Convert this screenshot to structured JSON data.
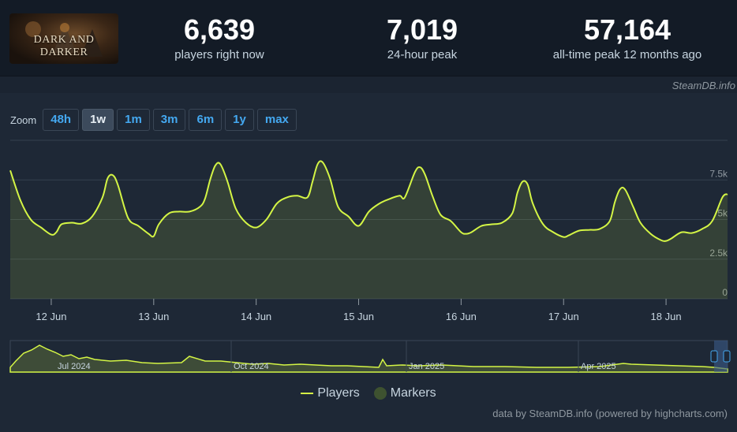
{
  "logo": {
    "text": "DARK AND DARKER"
  },
  "stats": [
    {
      "value": "6,639",
      "label": "players right now"
    },
    {
      "value": "7,019",
      "label": "24-hour peak"
    },
    {
      "value": "57,164",
      "label": "all-time peak 12 months ago"
    }
  ],
  "credit_top": "SteamDB.info",
  "zoom": {
    "label": "Zoom",
    "options": [
      {
        "label": "48h",
        "active": false
      },
      {
        "label": "1w",
        "active": true
      },
      {
        "label": "1m",
        "active": false
      },
      {
        "label": "3m",
        "active": false
      },
      {
        "label": "6m",
        "active": false
      },
      {
        "label": "1y",
        "active": false
      },
      {
        "label": "max",
        "active": false
      }
    ]
  },
  "legend": {
    "players": "Players",
    "markers": "Markers"
  },
  "credit_bottom": "data by SteamDB.info (powered by highcharts.com)",
  "colors": {
    "line": "#d4f545",
    "marker": "#3e5230",
    "accent": "#44a8f0"
  },
  "chart_data": {
    "type": "line",
    "yticks": [
      "0",
      "2.5k",
      "5k",
      "7.5k"
    ],
    "ylim": [
      0,
      10000
    ],
    "xticks": [
      "12 Jun",
      "13 Jun",
      "14 Jun",
      "15 Jun",
      "16 Jun",
      "17 Jun",
      "18 Jun"
    ],
    "xlim": [
      -0.4,
      6.6
    ],
    "series": [
      {
        "name": "Players",
        "points": [
          [
            -0.4,
            8100
          ],
          [
            -0.3,
            6200
          ],
          [
            -0.2,
            5000
          ],
          [
            -0.1,
            4500
          ],
          [
            0.0,
            4050
          ],
          [
            0.05,
            4200
          ],
          [
            0.1,
            4700
          ],
          [
            0.2,
            4800
          ],
          [
            0.3,
            4750
          ],
          [
            0.4,
            5200
          ],
          [
            0.5,
            6400
          ],
          [
            0.55,
            7600
          ],
          [
            0.6,
            7800
          ],
          [
            0.65,
            7200
          ],
          [
            0.75,
            5100
          ],
          [
            0.85,
            4600
          ],
          [
            0.95,
            4100
          ],
          [
            1.0,
            3950
          ],
          [
            1.05,
            4700
          ],
          [
            1.15,
            5400
          ],
          [
            1.25,
            5500
          ],
          [
            1.35,
            5500
          ],
          [
            1.45,
            5800
          ],
          [
            1.5,
            6300
          ],
          [
            1.55,
            7500
          ],
          [
            1.6,
            8400
          ],
          [
            1.65,
            8500
          ],
          [
            1.72,
            7400
          ],
          [
            1.8,
            5700
          ],
          [
            1.9,
            4800
          ],
          [
            2.0,
            4500
          ],
          [
            2.1,
            5000
          ],
          [
            2.2,
            6000
          ],
          [
            2.3,
            6400
          ],
          [
            2.4,
            6500
          ],
          [
            2.5,
            6400
          ],
          [
            2.55,
            7400
          ],
          [
            2.6,
            8500
          ],
          [
            2.65,
            8600
          ],
          [
            2.72,
            7600
          ],
          [
            2.8,
            5800
          ],
          [
            2.9,
            5200
          ],
          [
            3.0,
            4600
          ],
          [
            3.1,
            5500
          ],
          [
            3.2,
            6000
          ],
          [
            3.3,
            6300
          ],
          [
            3.4,
            6500
          ],
          [
            3.45,
            6400
          ],
          [
            3.55,
            8000
          ],
          [
            3.6,
            8300
          ],
          [
            3.65,
            7800
          ],
          [
            3.72,
            6500
          ],
          [
            3.8,
            5300
          ],
          [
            3.9,
            4900
          ],
          [
            4.0,
            4200
          ],
          [
            4.05,
            4100
          ],
          [
            4.1,
            4200
          ],
          [
            4.2,
            4600
          ],
          [
            4.3,
            4700
          ],
          [
            4.4,
            4800
          ],
          [
            4.5,
            5400
          ],
          [
            4.55,
            6700
          ],
          [
            4.6,
            7400
          ],
          [
            4.65,
            7200
          ],
          [
            4.7,
            6000
          ],
          [
            4.8,
            4700
          ],
          [
            4.9,
            4200
          ],
          [
            5.0,
            3900
          ],
          [
            5.05,
            4000
          ],
          [
            5.15,
            4300
          ],
          [
            5.25,
            4350
          ],
          [
            5.35,
            4400
          ],
          [
            5.45,
            4900
          ],
          [
            5.5,
            6100
          ],
          [
            5.55,
            6900
          ],
          [
            5.6,
            6900
          ],
          [
            5.68,
            5800
          ],
          [
            5.75,
            4800
          ],
          [
            5.85,
            4100
          ],
          [
            5.95,
            3700
          ],
          [
            6.0,
            3650
          ],
          [
            6.05,
            3800
          ],
          [
            6.15,
            4200
          ],
          [
            6.25,
            4150
          ],
          [
            6.35,
            4400
          ],
          [
            6.45,
            4900
          ],
          [
            6.55,
            6400
          ],
          [
            6.6,
            6600
          ]
        ]
      }
    ],
    "navigator": {
      "labels": [
        "Jul 2024",
        "Oct 2024",
        "Jan 2025",
        "Apr 2025"
      ]
    }
  }
}
